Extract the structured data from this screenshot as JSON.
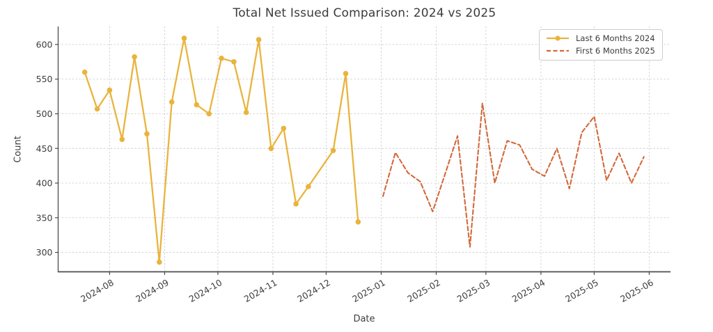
{
  "figure": {
    "background": "#ffffff"
  },
  "chart_data": {
    "type": "line",
    "title": "Total Net Issued Comparison: 2024 vs 2025",
    "xlabel": "Date",
    "ylabel": "Count",
    "grid": true,
    "grid_style": "dashed",
    "legend_position": "upper right",
    "ylim": [
      272,
      626
    ],
    "xlim_dates": [
      "2024-07-03",
      "2025-06-13"
    ],
    "y_ticks": [
      300,
      350,
      400,
      450,
      500,
      550,
      600
    ],
    "x_ticks": [
      {
        "date": "2024-08-01",
        "label": "2024-08"
      },
      {
        "date": "2024-09-01",
        "label": "2024-09"
      },
      {
        "date": "2024-10-01",
        "label": "2024-10"
      },
      {
        "date": "2024-11-01",
        "label": "2024-11"
      },
      {
        "date": "2024-12-01",
        "label": "2024-12"
      },
      {
        "date": "2025-01-01",
        "label": "2025-01"
      },
      {
        "date": "2025-02-01",
        "label": "2025-02"
      },
      {
        "date": "2025-03-01",
        "label": "2025-03"
      },
      {
        "date": "2025-04-01",
        "label": "2025-04"
      },
      {
        "date": "2025-05-01",
        "label": "2025-05"
      },
      {
        "date": "2025-06-01",
        "label": "2025-06"
      }
    ],
    "series": [
      {
        "name": "Last 6 Months 2024",
        "color": "#e9b43d",
        "line_style": "solid",
        "marker": "circle",
        "line_width": 2.3,
        "points": [
          {
            "date": "2024-07-18",
            "value": 560
          },
          {
            "date": "2024-07-25",
            "value": 507
          },
          {
            "date": "2024-08-01",
            "value": 534
          },
          {
            "date": "2024-08-08",
            "value": 463
          },
          {
            "date": "2024-08-15",
            "value": 582
          },
          {
            "date": "2024-08-22",
            "value": 471
          },
          {
            "date": "2024-08-29",
            "value": 286
          },
          {
            "date": "2024-09-05",
            "value": 517
          },
          {
            "date": "2024-09-12",
            "value": 609
          },
          {
            "date": "2024-09-19",
            "value": 513
          },
          {
            "date": "2024-09-26",
            "value": 500
          },
          {
            "date": "2024-10-03",
            "value": 580
          },
          {
            "date": "2024-10-10",
            "value": 575
          },
          {
            "date": "2024-10-17",
            "value": 502
          },
          {
            "date": "2024-10-24",
            "value": 607
          },
          {
            "date": "2024-10-31",
            "value": 450
          },
          {
            "date": "2024-11-07",
            "value": 479
          },
          {
            "date": "2024-11-14",
            "value": 370
          },
          {
            "date": "2024-11-21",
            "value": 395
          },
          {
            "date": "2024-12-05",
            "value": 447
          },
          {
            "date": "2024-12-12",
            "value": 558
          },
          {
            "date": "2024-12-19",
            "value": 344
          }
        ]
      },
      {
        "name": "First 6 Months 2025",
        "color": "#d2693c",
        "line_style": "dashed",
        "marker": "none",
        "line_width": 2.1,
        "points": [
          {
            "date": "2025-01-02",
            "value": 381
          },
          {
            "date": "2025-01-09",
            "value": 444
          },
          {
            "date": "2025-01-16",
            "value": 415
          },
          {
            "date": "2025-01-23",
            "value": 402
          },
          {
            "date": "2025-01-30",
            "value": 359
          },
          {
            "date": "2025-02-06",
            "value": 413
          },
          {
            "date": "2025-02-13",
            "value": 468
          },
          {
            "date": "2025-02-20",
            "value": 308
          },
          {
            "date": "2025-02-27",
            "value": 515
          },
          {
            "date": "2025-03-06",
            "value": 400
          },
          {
            "date": "2025-03-13",
            "value": 461
          },
          {
            "date": "2025-03-20",
            "value": 455
          },
          {
            "date": "2025-03-27",
            "value": 420
          },
          {
            "date": "2025-04-03",
            "value": 410
          },
          {
            "date": "2025-04-10",
            "value": 450
          },
          {
            "date": "2025-04-17",
            "value": 392
          },
          {
            "date": "2025-04-24",
            "value": 473
          },
          {
            "date": "2025-05-01",
            "value": 496
          },
          {
            "date": "2025-05-08",
            "value": 404
          },
          {
            "date": "2025-05-15",
            "value": 443
          },
          {
            "date": "2025-05-22",
            "value": 400
          },
          {
            "date": "2025-05-29",
            "value": 438
          }
        ]
      }
    ],
    "style_colors": {
      "grid": "#cfcfcf",
      "spine": "#4c4c4c",
      "tick_text": "#3d3d3d"
    }
  }
}
